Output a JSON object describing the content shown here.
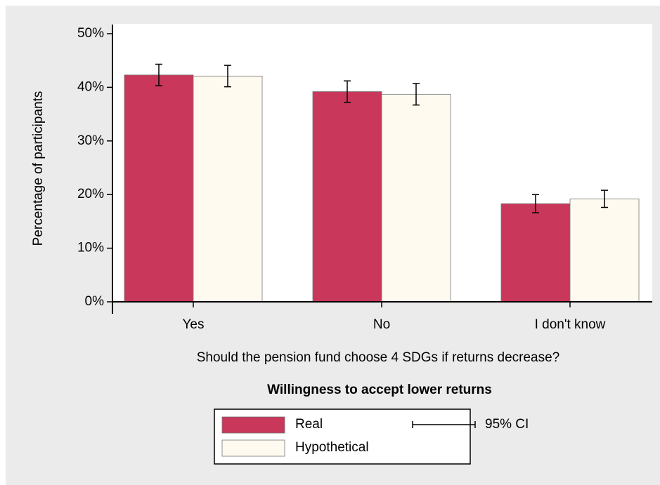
{
  "chart_data": {
    "type": "bar",
    "categories": [
      "Yes",
      "No",
      "I don't know"
    ],
    "series": [
      {
        "name": "Real",
        "color": "#c9375b",
        "values": [
          42.3,
          39.2,
          18.3
        ],
        "errors": [
          2.0,
          2.0,
          1.7
        ]
      },
      {
        "name": "Hypothetical",
        "color": "#fffaf0",
        "values": [
          42.1,
          38.7,
          19.2
        ],
        "errors": [
          2.0,
          2.0,
          1.6
        ]
      }
    ],
    "ylabel": "Percentage of participants",
    "xlabel": "Should the pension fund choose 4 SDGs if returns decrease?",
    "legend_title": "Willingness to accept lower returns",
    "ci_label": "95% CI",
    "ylim": [
      0,
      50
    ],
    "yticks": [
      {
        "value": 0,
        "label": "0%"
      },
      {
        "value": 10,
        "label": "10%"
      },
      {
        "value": 20,
        "label": "20%"
      },
      {
        "value": 30,
        "label": "30%"
      },
      {
        "value": 40,
        "label": "40%"
      },
      {
        "value": 50,
        "label": "50%"
      }
    ]
  }
}
